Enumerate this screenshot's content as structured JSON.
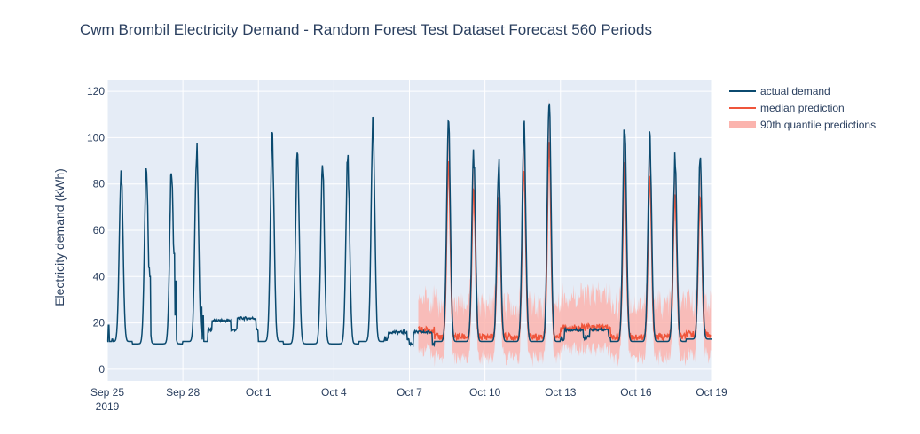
{
  "chart_data": {
    "type": "line",
    "title": "Cwm Brombil Electricity Demand - Random Forest Test Dataset Forecast 560 Periods",
    "xlabel": "",
    "ylabel": "Electricity demand (kWh)",
    "xlim": [
      0,
      24
    ],
    "ylim": [
      -5,
      125
    ],
    "y_ticks": [
      0,
      20,
      40,
      60,
      80,
      100,
      120
    ],
    "x_ticks": [
      {
        "x": 0,
        "label": "Sep 25",
        "sub": "2019"
      },
      {
        "x": 3,
        "label": "Sep 28",
        "sub": ""
      },
      {
        "x": 6,
        "label": "Oct 1",
        "sub": ""
      },
      {
        "x": 9,
        "label": "Oct 4",
        "sub": ""
      },
      {
        "x": 12,
        "label": "Oct 7",
        "sub": ""
      },
      {
        "x": 15,
        "label": "Oct 10",
        "sub": ""
      },
      {
        "x": 18,
        "label": "Oct 13",
        "sub": ""
      },
      {
        "x": 21,
        "label": "Oct 16",
        "sub": ""
      },
      {
        "x": 24,
        "label": "Oct 19",
        "sub": ""
      }
    ],
    "grid": true,
    "legend_position": "right",
    "forecast_start_x": 12.35,
    "day_profiles": [
      {
        "day": 0,
        "base": 12,
        "peak": 87,
        "extra": [
          [
            0.05,
            19
          ],
          [
            0.2,
            13
          ]
        ]
      },
      {
        "day": 1,
        "base": 11,
        "peak": 89,
        "extra": [
          [
            0.65,
            44
          ],
          [
            0.7,
            40
          ]
        ]
      },
      {
        "day": 2,
        "base": 11,
        "peak": 85,
        "extra": [
          [
            0.65,
            50
          ],
          [
            0.72,
            38
          ]
        ]
      },
      {
        "day": 3,
        "base": 12,
        "peak": 94,
        "extra": [
          [
            0.75,
            27
          ],
          [
            0.8,
            23
          ]
        ]
      },
      {
        "day": 4,
        "base": 17,
        "peak": 0,
        "flat": 21
      },
      {
        "day": 5,
        "base": 17,
        "peak": 0,
        "flat": 22
      },
      {
        "day": 6,
        "base": 12,
        "peak": 99
      },
      {
        "day": 7,
        "base": 11,
        "peak": 92
      },
      {
        "day": 8,
        "base": 11,
        "peak": 87
      },
      {
        "day": 9,
        "base": 11,
        "peak": 92
      },
      {
        "day": 10,
        "base": 12,
        "peak": 105
      },
      {
        "day": 11,
        "base": 13,
        "peak": 0,
        "flat": 16
      },
      {
        "day": 12,
        "base": 11,
        "peak": 0,
        "flat": 16
      },
      {
        "day": 13,
        "base": 12,
        "peak": 107
      },
      {
        "day": 14,
        "base": 12,
        "peak": 92
      },
      {
        "day": 15,
        "base": 12,
        "peak": 89
      },
      {
        "day": 16,
        "base": 12,
        "peak": 104
      },
      {
        "day": 17,
        "base": 12,
        "peak": 118
      },
      {
        "day": 18,
        "base": 13,
        "peak": 0,
        "flat": 17
      },
      {
        "day": 19,
        "base": 14,
        "peak": 0,
        "flat": 17
      },
      {
        "day": 20,
        "base": 12,
        "peak": 107
      },
      {
        "day": 21,
        "base": 12,
        "peak": 99
      },
      {
        "day": 22,
        "base": 12,
        "peak": 89
      },
      {
        "day": 23,
        "base": 13,
        "peak": 90
      }
    ],
    "series": [
      {
        "name": "actual demand",
        "color": "#0b4a6f",
        "style": "line"
      },
      {
        "name": "median prediction",
        "color": "#ef553b",
        "style": "line"
      },
      {
        "name": "90th quantile predictions",
        "color": "#fbb4ae",
        "style": "band"
      }
    ]
  }
}
